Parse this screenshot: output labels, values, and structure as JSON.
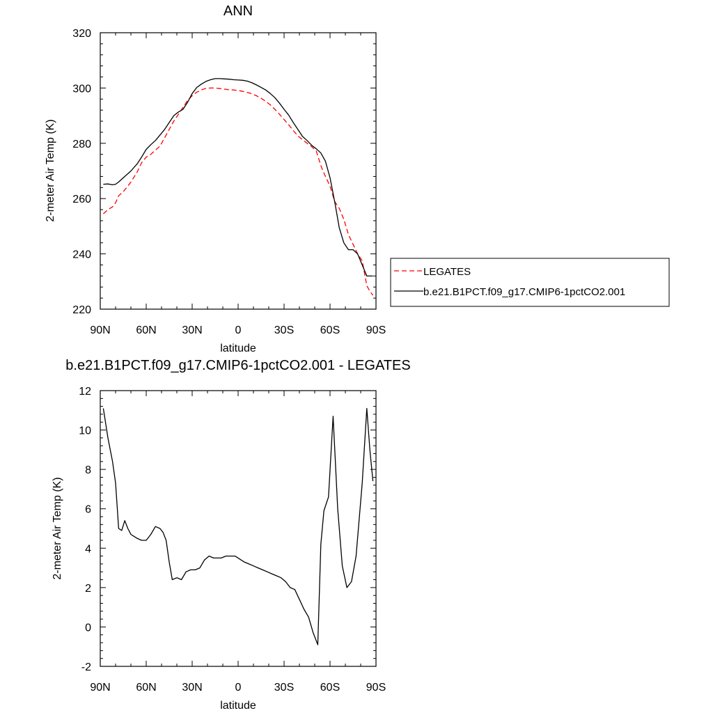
{
  "chart_data": [
    {
      "type": "line",
      "title": "ANN",
      "xlabel": "latitude",
      "ylabel": "2-meter Air Temp (K)",
      "ylim": [
        220,
        320
      ],
      "yticks": [
        220,
        240,
        260,
        280,
        300,
        320
      ],
      "xlim": [
        90,
        -90
      ],
      "xtick_values": [
        90,
        60,
        30,
        0,
        -30,
        -60,
        -90
      ],
      "xtick_labels": [
        "90N",
        "60N",
        "30N",
        "0",
        "30S",
        "60S",
        "90S"
      ],
      "grid": false,
      "legend_position": "right",
      "series": [
        {
          "name": "LEGATES",
          "color": "#ff0000",
          "dash": "dashed",
          "x": [
            88,
            85,
            82,
            80,
            78,
            75,
            72,
            70,
            66,
            63,
            60,
            57,
            54,
            51,
            48,
            45,
            42,
            39,
            36,
            33,
            30,
            27,
            24,
            21,
            18,
            15,
            12,
            9,
            6,
            3,
            0,
            -3,
            -6,
            -9,
            -12,
            -15,
            -18,
            -21,
            -24,
            -27,
            -30,
            -33,
            -36,
            -39,
            -42,
            -45,
            -48,
            -51,
            -54,
            -55,
            -57,
            -60,
            -63,
            -66,
            -69,
            -72,
            -75,
            -78,
            -81,
            -84,
            -86,
            -88
          ],
          "y": [
            254.5,
            256.0,
            257.0,
            258.5,
            261.0,
            262.5,
            264.5,
            266.0,
            269.5,
            273.0,
            275.0,
            276.0,
            277.5,
            279.0,
            282.0,
            285.0,
            288.0,
            290.5,
            293.0,
            295.5,
            297.2,
            298.5,
            299.3,
            299.9,
            300.0,
            300.0,
            299.8,
            299.6,
            299.4,
            299.3,
            299.1,
            298.8,
            298.4,
            297.9,
            297.2,
            296.3,
            295.2,
            293.9,
            292.3,
            290.5,
            288.6,
            286.7,
            284.6,
            282.7,
            281.3,
            280.0,
            278.8,
            277.2,
            272.0,
            270.5,
            268.0,
            264.5,
            259.0,
            256.5,
            252.5,
            247.0,
            243.5,
            240.0,
            237.5,
            228.5,
            226.5,
            225.0
          ]
        },
        {
          "name": "b.e21.B1PCT.f09_g17.CMIP6-1pctCO2.001",
          "color": "#000000",
          "dash": "solid",
          "x": [
            88,
            85,
            82,
            80,
            78,
            75,
            72,
            70,
            66,
            63,
            60,
            57,
            54,
            51,
            48,
            45,
            42,
            39,
            36,
            33,
            30,
            27,
            24,
            21,
            18,
            15,
            12,
            9,
            6,
            3,
            0,
            -3,
            -6,
            -9,
            -12,
            -15,
            -18,
            -21,
            -24,
            -27,
            -30,
            -33,
            -36,
            -39,
            -42,
            -45,
            -48,
            -51,
            -54,
            -57,
            -60,
            -63,
            -66,
            -69,
            -72,
            -75,
            -78,
            -81,
            -84,
            -86,
            -88
          ],
          "y": [
            265.2,
            265.3,
            265.0,
            265.2,
            266.0,
            267.5,
            269.0,
            270.0,
            272.5,
            275.0,
            277.8,
            279.5,
            281.0,
            283.0,
            285.0,
            287.5,
            290.0,
            291.3,
            292.3,
            294.8,
            298.0,
            300.2,
            301.4,
            302.4,
            303.0,
            303.4,
            303.4,
            303.3,
            303.2,
            303.0,
            302.9,
            302.8,
            302.5,
            301.9,
            301.1,
            300.2,
            299.3,
            298.0,
            296.5,
            294.5,
            292.3,
            290.2,
            287.5,
            285.0,
            282.5,
            281.0,
            279.3,
            278.0,
            276.5,
            273.5,
            267.5,
            259.0,
            249.5,
            244.0,
            241.5,
            241.5,
            240.0,
            236.0,
            232.0,
            232.0,
            232.0
          ]
        }
      ]
    },
    {
      "type": "line",
      "title": "b.e21.B1PCT.f09_g17.CMIP6-1pctCO2.001 - LEGATES",
      "xlabel": "latitude",
      "ylabel": "2-meter Air Temp (K)",
      "ylim": [
        -2,
        12
      ],
      "yticks": [
        -2,
        0,
        2,
        4,
        6,
        8,
        10,
        12
      ],
      "xlim": [
        90,
        -90
      ],
      "xtick_values": [
        90,
        60,
        30,
        0,
        -30,
        -60,
        -90
      ],
      "xtick_labels": [
        "90N",
        "60N",
        "30N",
        "0",
        "30S",
        "60S",
        "90S"
      ],
      "grid": false,
      "series": [
        {
          "color": "#000000",
          "dash": "solid",
          "x": [
            88,
            85,
            82,
            80,
            78,
            76,
            74,
            72,
            70,
            68,
            66,
            63,
            60,
            57,
            54,
            51,
            49,
            47,
            45,
            43,
            40,
            37,
            34,
            31,
            28,
            25,
            22,
            19,
            16,
            13,
            11,
            8,
            5,
            2,
            0,
            -2,
            -4,
            -7,
            -10,
            -13,
            -16,
            -19,
            -22,
            -25,
            -28,
            -31,
            -34,
            -37,
            -40,
            -43,
            -46,
            -49,
            -52,
            -54,
            -56,
            -59,
            -62,
            -65,
            -68,
            -71,
            -74,
            -77,
            -81,
            -84,
            -86,
            -88
          ],
          "y": [
            11.1,
            9.6,
            8.4,
            7.3,
            5.0,
            4.9,
            5.4,
            5.0,
            4.7,
            4.6,
            4.5,
            4.4,
            4.4,
            4.7,
            5.1,
            5.0,
            4.8,
            4.4,
            3.3,
            2.4,
            2.5,
            2.4,
            2.8,
            2.9,
            2.9,
            3.0,
            3.4,
            3.6,
            3.5,
            3.5,
            3.5,
            3.6,
            3.6,
            3.6,
            3.5,
            3.4,
            3.3,
            3.2,
            3.1,
            3.0,
            2.9,
            2.8,
            2.7,
            2.6,
            2.5,
            2.3,
            2.0,
            1.9,
            1.4,
            0.9,
            0.5,
            -0.3,
            -0.9,
            4.2,
            5.9,
            6.6,
            10.7,
            6.0,
            3.1,
            2.0,
            2.3,
            3.6,
            7.3,
            11.1,
            9.0,
            7.4
          ]
        }
      ]
    }
  ]
}
